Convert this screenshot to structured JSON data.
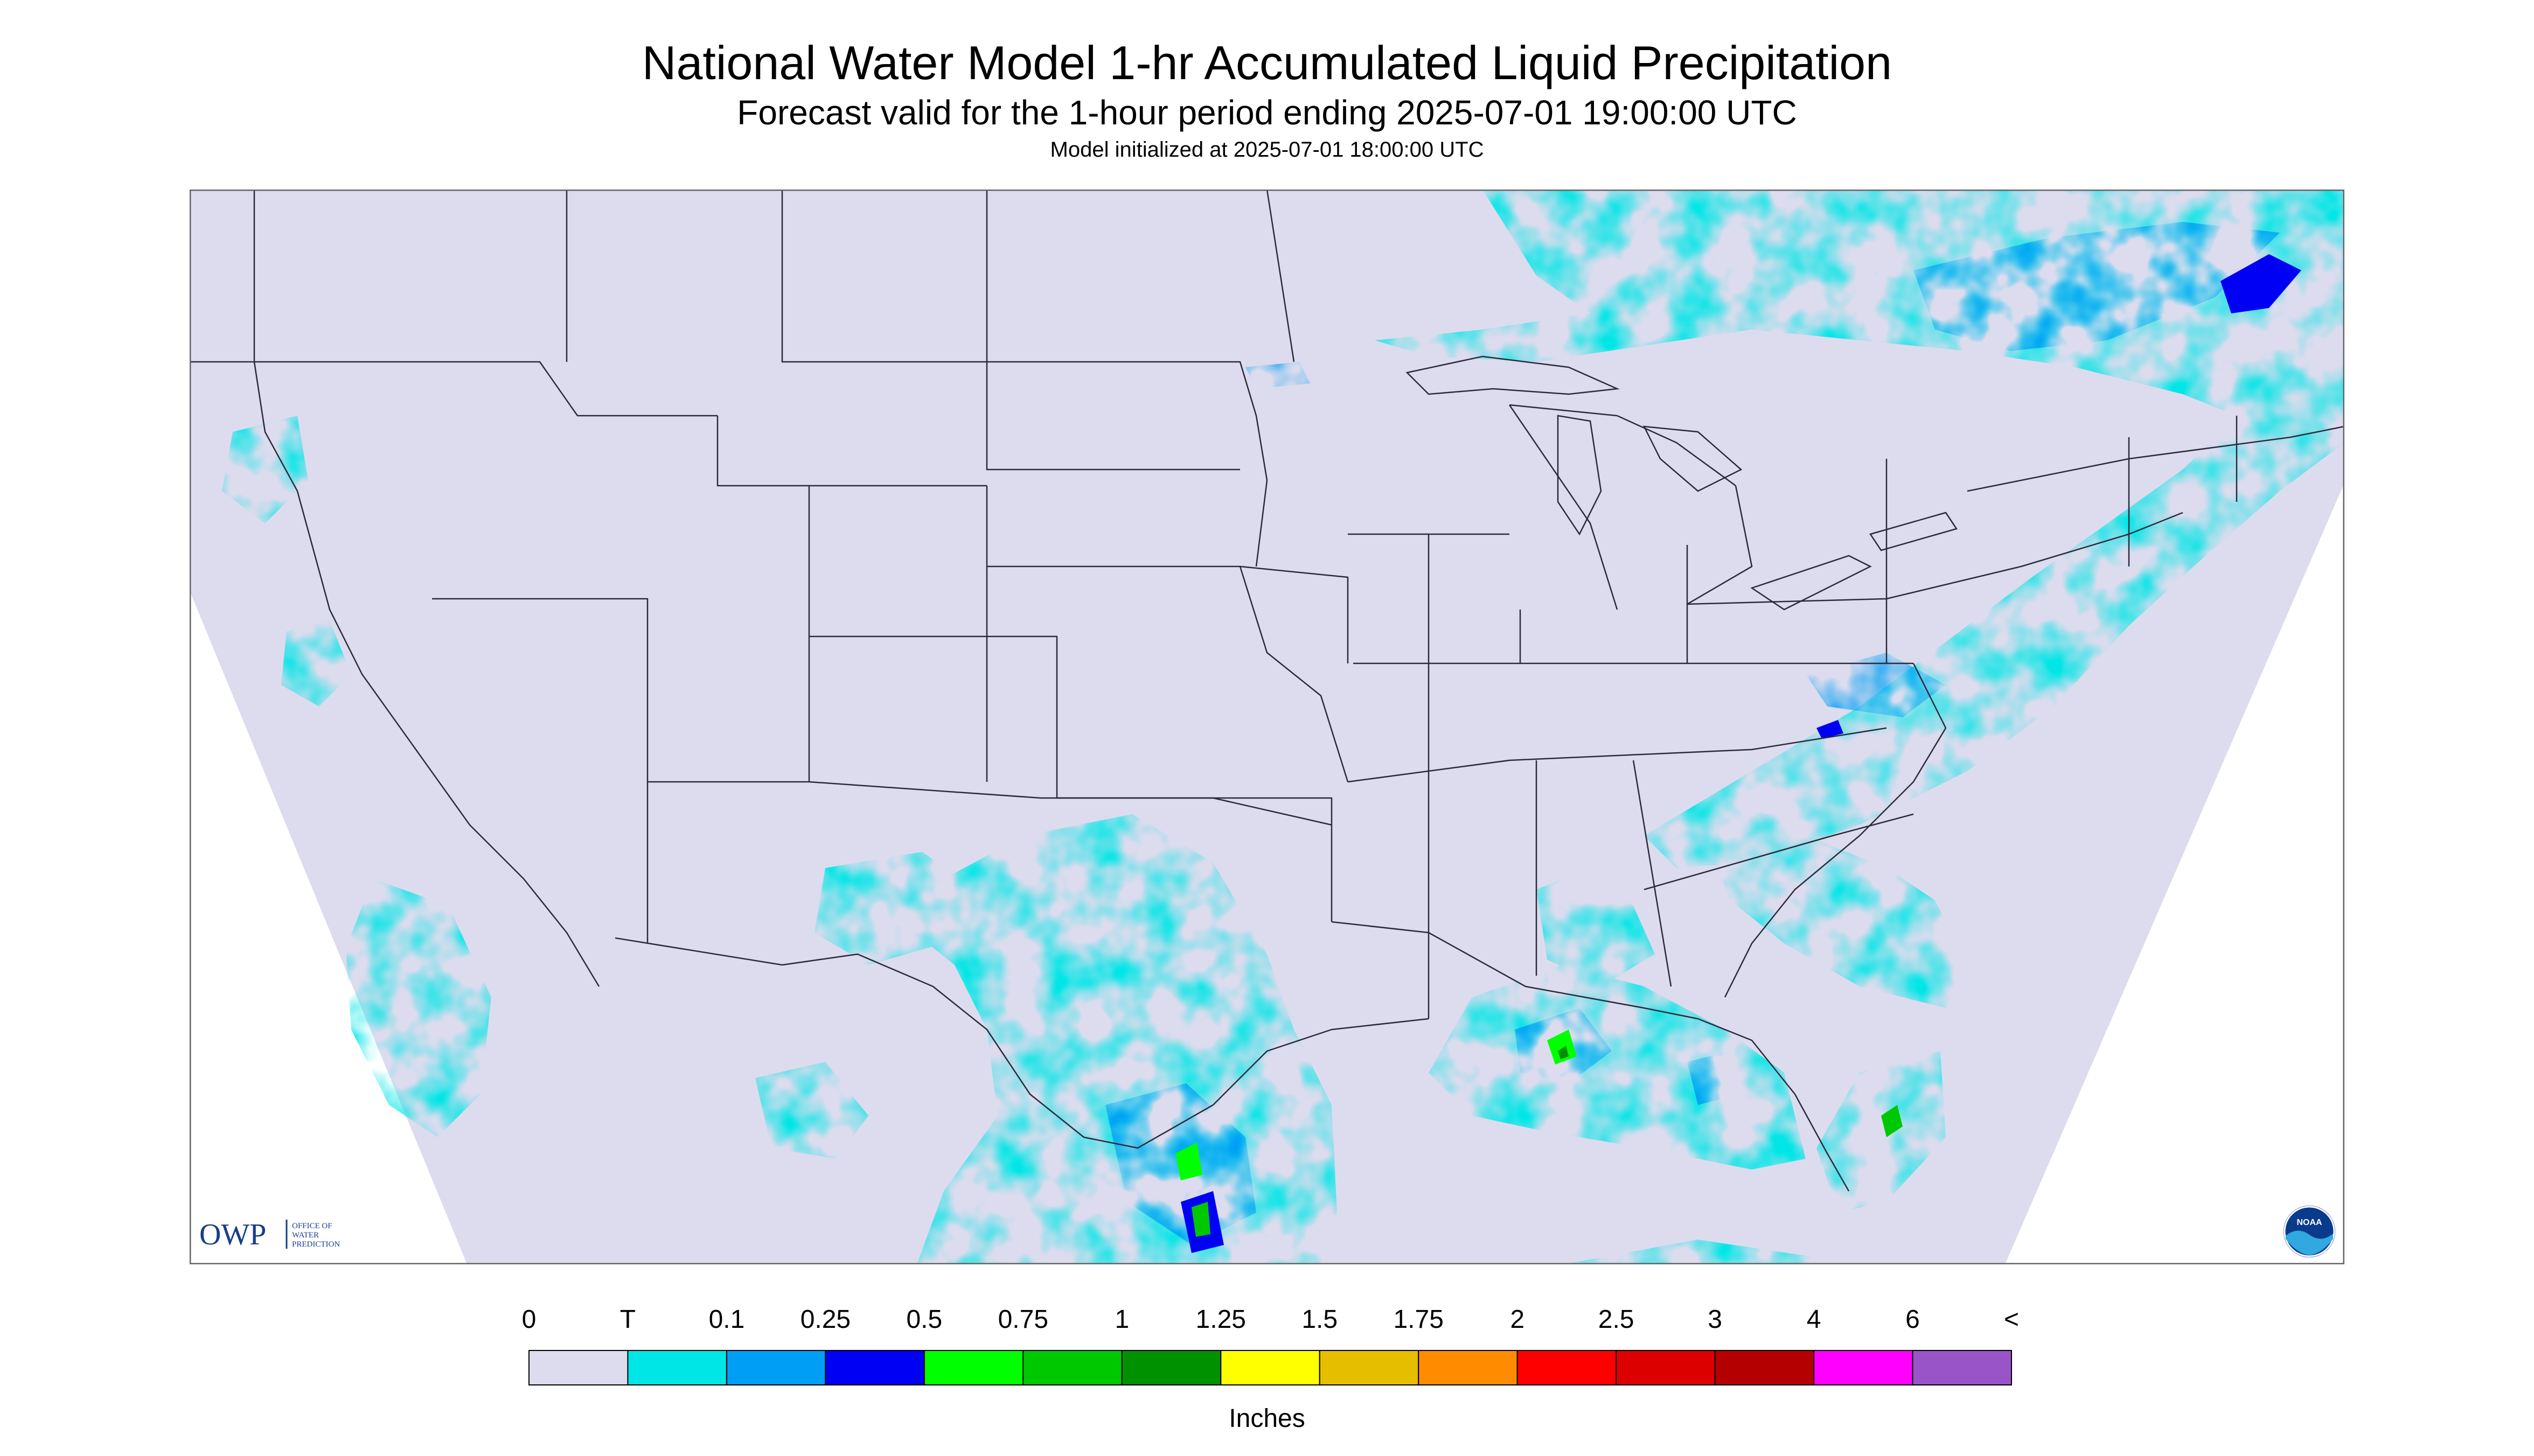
{
  "title": "National Water Model 1-hr Accumulated Liquid Precipitation",
  "subtitle": "Forecast valid for the 1-hour period ending 2025-07-01 19:00:00 UTC",
  "init_line": "Model initialized at 2025-07-01 18:00:00 UTC",
  "colors": {
    "background": "#dcdcee",
    "border": "#666666",
    "state_lines": "#2a2a3a"
  },
  "legend": {
    "unit_label": "Inches",
    "labels": [
      "0",
      "T",
      "0.1",
      "0.25",
      "0.5",
      "0.75",
      "1",
      "1.25",
      "1.5",
      "1.75",
      "2",
      "2.5",
      "3",
      "4",
      "6",
      "<"
    ],
    "colors": [
      "#dcdcee",
      "#00e6e6",
      "#009ff5",
      "#0000f5",
      "#00ff00",
      "#00c800",
      "#009100",
      "#ffff00",
      "#e6be00",
      "#ff8c00",
      "#ff0000",
      "#dc0000",
      "#b40000",
      "#ff00ff",
      "#9955c8"
    ]
  },
  "logos": {
    "owp_mark": "OWP",
    "owp_text": [
      "OFFICE OF",
      "WATER",
      "PREDICTION"
    ],
    "noaa": "NOAA"
  }
}
